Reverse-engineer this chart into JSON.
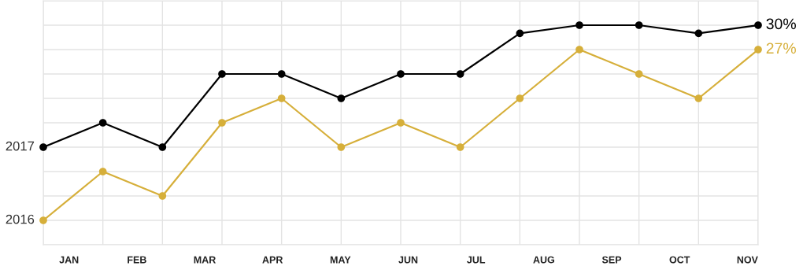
{
  "chart_data": {
    "type": "line",
    "categories": [
      null,
      null,
      null,
      null,
      null,
      null,
      null,
      null,
      null,
      null,
      null,
      null,
      null
    ],
    "annotations": [
      "JAN",
      "FEB",
      "MAR",
      "APR",
      "MAY",
      "JUN",
      "JUL",
      "AUG",
      "SEP",
      "OCT",
      "NOV"
    ],
    "series": [
      {
        "name": "2017",
        "color": "#000000",
        "values": [
          15,
          18,
          15,
          24,
          24,
          21,
          24,
          24,
          29,
          30,
          30,
          29,
          30
        ],
        "value_labels": [
          null,
          null,
          null,
          null,
          null,
          null,
          null,
          null,
          null,
          null,
          null,
          null,
          "30%"
        ]
      },
      {
        "name": "2016",
        "color": "#d6af3a",
        "values": [
          6,
          12,
          9,
          18,
          21,
          15,
          18,
          15,
          21,
          27,
          24,
          21,
          27
        ],
        "value_labels": [
          null,
          null,
          null,
          null,
          null,
          null,
          null,
          null,
          null,
          null,
          null,
          null,
          "27%"
        ]
      }
    ],
    "ylim": [
      3,
      33
    ],
    "yticks": [
      {
        "value": 3,
        "label": null
      },
      {
        "value": 6,
        "label": null
      },
      {
        "value": 9,
        "label": null
      },
      {
        "value": 12,
        "label": null
      },
      {
        "value": 15,
        "label": null
      },
      {
        "value": 18,
        "label": null
      },
      {
        "value": 21,
        "label": null
      },
      {
        "value": 24,
        "label": null
      },
      {
        "value": 27,
        "label": null
      },
      {
        "value": 30,
        "label": null
      },
      {
        "value": 33,
        "label": null
      }
    ],
    "grid": true,
    "legend": false,
    "marker": "circle",
    "line_style": "solid"
  }
}
